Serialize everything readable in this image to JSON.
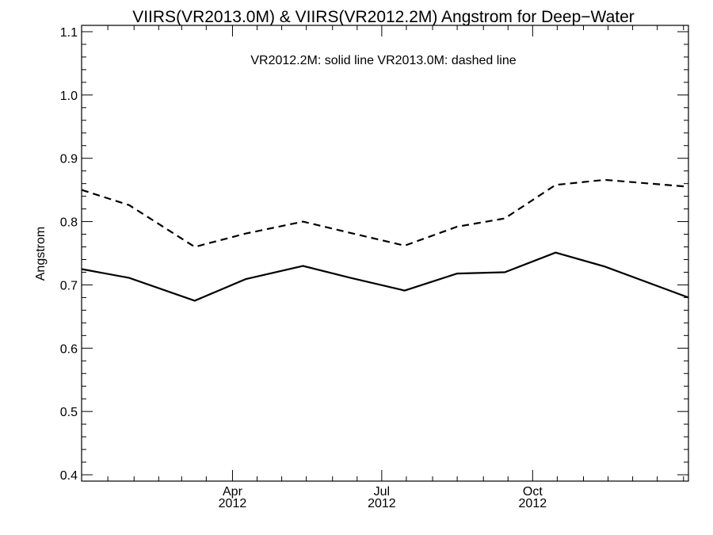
{
  "chart_data": {
    "type": "line",
    "title": "VIIRS(VR2013.0M) & VIIRS(VR2012.2M)  Angstrom for Deep−Water",
    "annotation": "VR2012.2M: solid line   VR2013.0M: dashed line",
    "xlabel": "",
    "ylabel": "Angstrom",
    "ylim": [
      0.39,
      1.11
    ],
    "y_ticks": [
      "0.4",
      "0.5",
      "0.6",
      "0.7",
      "0.8",
      "0.9",
      "1.0",
      "1.1"
    ],
    "x_range": [
      "2011-12-31",
      "2013-01-04"
    ],
    "x_ticks": [
      {
        "date": "2012-04-01",
        "label": "Apr",
        "year": "2012"
      },
      {
        "date": "2012-07-01",
        "label": "Jul",
        "year": "2012"
      },
      {
        "date": "2012-10-01",
        "label": "Oct",
        "year": "2012"
      }
    ],
    "x_minor_tick_dates": [
      "2012-01-16",
      "2012-02-01",
      "2012-02-16",
      "2012-03-01",
      "2012-03-16",
      "2012-04-16",
      "2012-05-01",
      "2012-05-16",
      "2012-06-01",
      "2012-06-16",
      "2012-07-16",
      "2012-08-01",
      "2012-08-16",
      "2012-09-01",
      "2012-09-16",
      "2012-10-16",
      "2012-11-01",
      "2012-11-16",
      "2012-12-01",
      "2012-12-16",
      "2013-01-01"
    ],
    "grid": false,
    "x": [
      "2011-12-31",
      "2012-01-29",
      "2012-03-09",
      "2012-04-09",
      "2012-05-14",
      "2012-06-12",
      "2012-07-15",
      "2012-08-16",
      "2012-09-14",
      "2012-10-15",
      "2012-11-14",
      "2013-01-04"
    ],
    "series": [
      {
        "name": "VR2012.2M",
        "style": "solid",
        "values": [
          0.725,
          0.711,
          0.675,
          0.709,
          0.73,
          0.711,
          0.691,
          0.718,
          0.72,
          0.751,
          0.729,
          0.68
        ]
      },
      {
        "name": "VR2013.0M",
        "style": "dashed",
        "values": [
          0.85,
          0.826,
          0.76,
          0.781,
          0.8,
          0.782,
          0.762,
          0.792,
          0.805,
          0.858,
          0.866,
          0.855
        ]
      }
    ]
  }
}
